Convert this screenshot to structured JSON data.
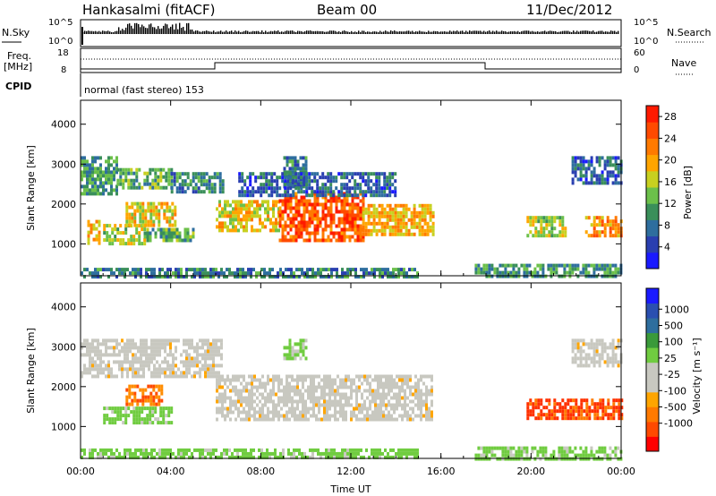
{
  "header": {
    "station": "Hankasalmi (fitACF)",
    "beam": "Beam 00",
    "date": "11/Dec/2012"
  },
  "top_panels": {
    "nsky_label": "N.Sky",
    "nsky_ticks": [
      "10^5",
      "10^0"
    ],
    "nsearch_label": "N.Search",
    "nsearch_ticks": [
      "10^5",
      "10^0"
    ],
    "freq_label_1": "Freq.",
    "freq_label_2": "[MHz]",
    "freq_ticks": [
      "18",
      "8"
    ],
    "nave_label": "Nave",
    "nave_ticks": [
      "60",
      "0"
    ],
    "cpid_label": "CPID",
    "cpid_text": "normal (fast stereo) 153"
  },
  "colors": {
    "power_scale": [
      "#1a1aff",
      "#2a3fb0",
      "#2e6e9e",
      "#3a8f5a",
      "#6cc04a",
      "#c8d020",
      "#ffa500",
      "#ff7a00",
      "#ff4a00",
      "#ff1a00"
    ],
    "velocity_scale": [
      "#ff0000",
      "#ff4a00",
      "#ff7a00",
      "#ffa500",
      "#c8c8c0",
      "#c8c8c0",
      "#70cc40",
      "#3a9a3a",
      "#2e6e9e",
      "#2a4fb0",
      "#1a1aff"
    ]
  },
  "chart_data": [
    {
      "type": "heatmap",
      "name": "power-panel",
      "title": "",
      "xlabel": "",
      "ylabel": "Slant Range [km]",
      "xlim": [
        0,
        24
      ],
      "ylim": [
        200,
        4600
      ],
      "x_ticks": [
        "00:00",
        "04:00",
        "08:00",
        "12:00",
        "16:00",
        "20:00",
        "00:00"
      ],
      "y_ticks": [
        "1000",
        "2000",
        "3000",
        "4000"
      ],
      "colorbar_label": "Power [dB]",
      "colorbar_ticks": [
        "4",
        "8",
        "12",
        "16",
        "20",
        "24",
        "28"
      ],
      "colorbar_range": [
        0,
        30
      ],
      "regions": [
        {
          "t0": 0.0,
          "t1": 1.6,
          "r0": 2300,
          "r1": 3200,
          "value": 10
        },
        {
          "t0": 1.6,
          "t1": 4.0,
          "r0": 2400,
          "r1": 2900,
          "value": 12
        },
        {
          "t0": 4.0,
          "t1": 6.3,
          "r0": 2300,
          "r1": 2800,
          "value": 8
        },
        {
          "t0": 1.0,
          "t1": 2.8,
          "r0": 1050,
          "r1": 1500,
          "value": 16
        },
        {
          "t0": 2.8,
          "t1": 5.0,
          "r0": 1100,
          "r1": 1400,
          "value": 12
        },
        {
          "t0": 2.0,
          "t1": 4.2,
          "r0": 1500,
          "r1": 2050,
          "value": 18
        },
        {
          "t0": 0.3,
          "t1": 0.8,
          "r0": 1000,
          "r1": 1600,
          "value": 20
        },
        {
          "t0": 6.0,
          "t1": 8.8,
          "r0": 1300,
          "r1": 2100,
          "value": 18
        },
        {
          "t0": 8.8,
          "t1": 12.5,
          "r0": 1100,
          "r1": 2300,
          "value": 26
        },
        {
          "t0": 12.5,
          "t1": 15.6,
          "r0": 1200,
          "r1": 2000,
          "value": 20
        },
        {
          "t0": 9.0,
          "t1": 10.0,
          "r0": 2400,
          "r1": 3200,
          "value": 8
        },
        {
          "t0": 7.0,
          "t1": 14.0,
          "r0": 2200,
          "r1": 2800,
          "value": 6
        },
        {
          "t0": 19.8,
          "t1": 21.5,
          "r0": 1250,
          "r1": 1700,
          "value": 16
        },
        {
          "t0": 22.4,
          "t1": 24.0,
          "r0": 1200,
          "r1": 1700,
          "value": 22
        },
        {
          "t0": 21.8,
          "t1": 24.0,
          "r0": 2500,
          "r1": 3200,
          "value": 6
        },
        {
          "t0": 0.0,
          "t1": 15.0,
          "r0": 200,
          "r1": 400,
          "value": 8
        },
        {
          "t0": 17.5,
          "t1": 24.0,
          "r0": 200,
          "r1": 500,
          "value": 10
        }
      ]
    },
    {
      "type": "heatmap",
      "name": "velocity-panel",
      "title": "",
      "xlabel": "Time UT",
      "ylabel": "Slant Range [km]",
      "xlim": [
        0,
        24
      ],
      "ylim": [
        200,
        4600
      ],
      "x_ticks": [
        "00:00",
        "04:00",
        "08:00",
        "12:00",
        "16:00",
        "20:00",
        "00:00"
      ],
      "y_ticks": [
        "1000",
        "2000",
        "3000",
        "4000"
      ],
      "colorbar_label": "Velocity [m s⁻¹]",
      "colorbar_ticks": [
        "-1000",
        "-500",
        "-100",
        "-25",
        "25",
        "100",
        "500",
        "1000"
      ],
      "regions": [
        {
          "t0": 0.0,
          "t1": 6.3,
          "r0": 2300,
          "r1": 3200,
          "value": "gray"
        },
        {
          "t0": 1.0,
          "t1": 4.0,
          "r0": 1100,
          "r1": 1500,
          "value": "green"
        },
        {
          "t0": 2.0,
          "t1": 3.6,
          "r0": 1550,
          "r1": 2050,
          "value": "orange"
        },
        {
          "t0": 6.0,
          "t1": 15.6,
          "r0": 1150,
          "r1": 2300,
          "value": "gray"
        },
        {
          "t0": 9.0,
          "t1": 10.0,
          "r0": 2700,
          "r1": 3200,
          "value": "green"
        },
        {
          "t0": 19.8,
          "t1": 24.0,
          "r0": 1200,
          "r1": 1700,
          "value": "red"
        },
        {
          "t0": 21.8,
          "t1": 24.0,
          "r0": 2500,
          "r1": 3200,
          "value": "gray"
        },
        {
          "t0": 0.0,
          "t1": 15.0,
          "r0": 200,
          "r1": 450,
          "value": "green"
        },
        {
          "t0": 17.5,
          "t1": 24.0,
          "r0": 200,
          "r1": 500,
          "value": "green"
        }
      ]
    }
  ]
}
